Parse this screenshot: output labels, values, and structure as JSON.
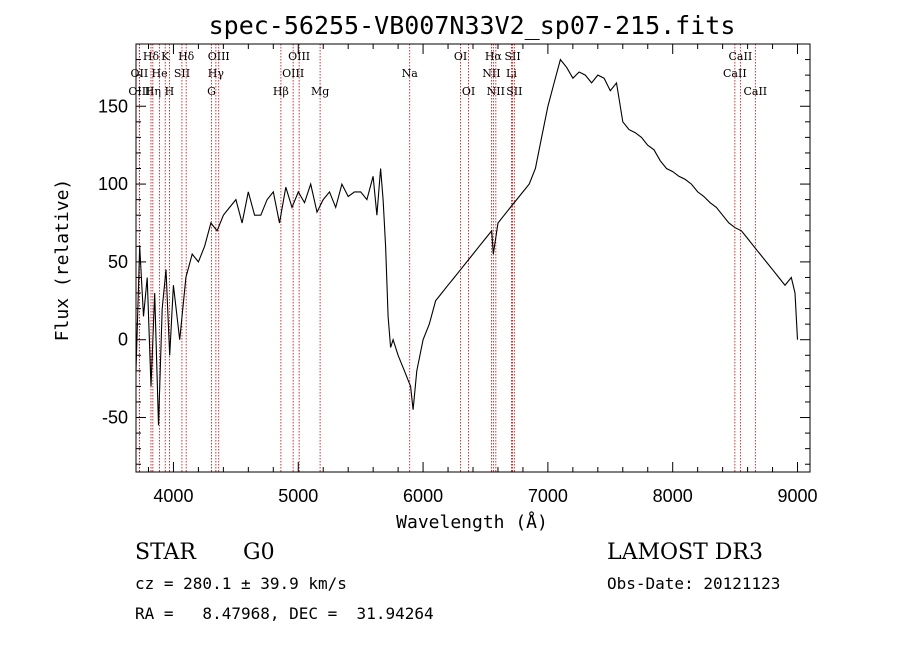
{
  "chart_data": {
    "type": "line",
    "title": "spec-56255-VB007N33V2_sp07-215.fits",
    "xlabel": "Wavelength (Å)",
    "ylabel": "Flux (relative)",
    "xlim": [
      3700,
      9100
    ],
    "ylim": [
      -85,
      190
    ],
    "xticks": [
      4000,
      5000,
      6000,
      7000,
      8000,
      9000
    ],
    "yticks": [
      -50,
      0,
      50,
      100,
      150
    ],
    "grid": false,
    "series": [
      {
        "name": "flux",
        "color": "#000000",
        "x": [
          3700,
          3730,
          3760,
          3790,
          3820,
          3850,
          3880,
          3910,
          3940,
          3970,
          4000,
          4050,
          4100,
          4150,
          4200,
          4250,
          4300,
          4350,
          4400,
          4450,
          4500,
          4550,
          4600,
          4650,
          4700,
          4750,
          4800,
          4850,
          4900,
          4950,
          5000,
          5050,
          5100,
          5150,
          5200,
          5250,
          5300,
          5350,
          5400,
          5450,
          5500,
          5550,
          5600,
          5630,
          5660,
          5680,
          5700,
          5720,
          5740,
          5760,
          5800,
          5850,
          5900,
          5920,
          5950,
          6000,
          6050,
          6100,
          6150,
          6200,
          6250,
          6300,
          6350,
          6400,
          6450,
          6500,
          6550,
          6563,
          6600,
          6650,
          6700,
          6750,
          6800,
          6850,
          6900,
          6950,
          7000,
          7050,
          7100,
          7150,
          7200,
          7250,
          7300,
          7350,
          7400,
          7450,
          7500,
          7550,
          7600,
          7650,
          7700,
          7750,
          7800,
          7850,
          7900,
          7950,
          8000,
          8050,
          8100,
          8150,
          8200,
          8250,
          8300,
          8350,
          8400,
          8450,
          8500,
          8550,
          8600,
          8650,
          8700,
          8750,
          8800,
          8850,
          8900,
          8950,
          8980,
          9000
        ],
        "y": [
          -20,
          60,
          15,
          40,
          -30,
          30,
          -55,
          20,
          45,
          -10,
          35,
          0,
          40,
          55,
          50,
          60,
          75,
          70,
          80,
          85,
          90,
          75,
          95,
          80,
          80,
          90,
          95,
          75,
          98,
          85,
          95,
          88,
          100,
          82,
          90,
          95,
          85,
          100,
          92,
          95,
          95,
          90,
          105,
          80,
          110,
          90,
          60,
          15,
          -5,
          0,
          -10,
          -20,
          -30,
          -45,
          -20,
          0,
          10,
          25,
          30,
          35,
          40,
          45,
          50,
          55,
          60,
          65,
          70,
          55,
          75,
          80,
          85,
          90,
          95,
          100,
          110,
          130,
          150,
          165,
          180,
          175,
          168,
          172,
          170,
          165,
          170,
          168,
          160,
          165,
          140,
          135,
          133,
          130,
          125,
          122,
          115,
          110,
          108,
          105,
          103,
          100,
          95,
          92,
          88,
          85,
          80,
          75,
          72,
          70,
          65,
          60,
          55,
          50,
          45,
          40,
          35,
          40,
          30,
          0
        ]
      }
    ],
    "line_marker_color": "#cc0000",
    "lines": [
      {
        "label": "Hδ",
        "wl": 3820,
        "row": 0
      },
      {
        "label": "K",
        "wl": 3934,
        "row": 0
      },
      {
        "label": "Hδ",
        "wl": 4102,
        "row": 0
      },
      {
        "label": "OIII",
        "wl": 4363,
        "row": 0
      },
      {
        "label": "OIII",
        "wl": 5007,
        "row": 0
      },
      {
        "label": "OI",
        "wl": 6300,
        "row": 0
      },
      {
        "label": "Hα",
        "wl": 6563,
        "row": 0
      },
      {
        "label": "SII",
        "wl": 6717,
        "row": 0
      },
      {
        "label": "CaII",
        "wl": 8542,
        "row": 0
      },
      {
        "label": "OII",
        "wl": 3727,
        "row": 1
      },
      {
        "label": "He",
        "wl": 3889,
        "row": 1
      },
      {
        "label": "SII",
        "wl": 4068,
        "row": 1
      },
      {
        "label": "Hγ",
        "wl": 4340,
        "row": 1
      },
      {
        "label": "OIII",
        "wl": 4959,
        "row": 1
      },
      {
        "label": "Na",
        "wl": 5893,
        "row": 1
      },
      {
        "label": "NII",
        "wl": 6548,
        "row": 1
      },
      {
        "label": "Li",
        "wl": 6708,
        "row": 1
      },
      {
        "label": "CaII",
        "wl": 8498,
        "row": 1
      },
      {
        "label": "OIII",
        "wl": 3727,
        "row": 2
      },
      {
        "label": "Hη",
        "wl": 3835,
        "row": 2
      },
      {
        "label": "H",
        "wl": 3968,
        "row": 2
      },
      {
        "label": "G",
        "wl": 4305,
        "row": 2
      },
      {
        "label": "Hβ",
        "wl": 4861,
        "row": 2
      },
      {
        "label": "Mg",
        "wl": 5175,
        "row": 2
      },
      {
        "label": "OI",
        "wl": 6364,
        "row": 2
      },
      {
        "label": "NII",
        "wl": 6583,
        "row": 2
      },
      {
        "label": "SII",
        "wl": 6731,
        "row": 2
      },
      {
        "label": "CaII",
        "wl": 8662,
        "row": 2
      }
    ]
  },
  "info": {
    "object_class": "STAR",
    "subclass": "G0",
    "survey": "LAMOST DR3",
    "cz": "cz = 280.1 ± 39.9 km/s",
    "obs_date": "Obs-Date: 20121123",
    "coords": "RA =   8.47968, DEC =  31.94264"
  }
}
